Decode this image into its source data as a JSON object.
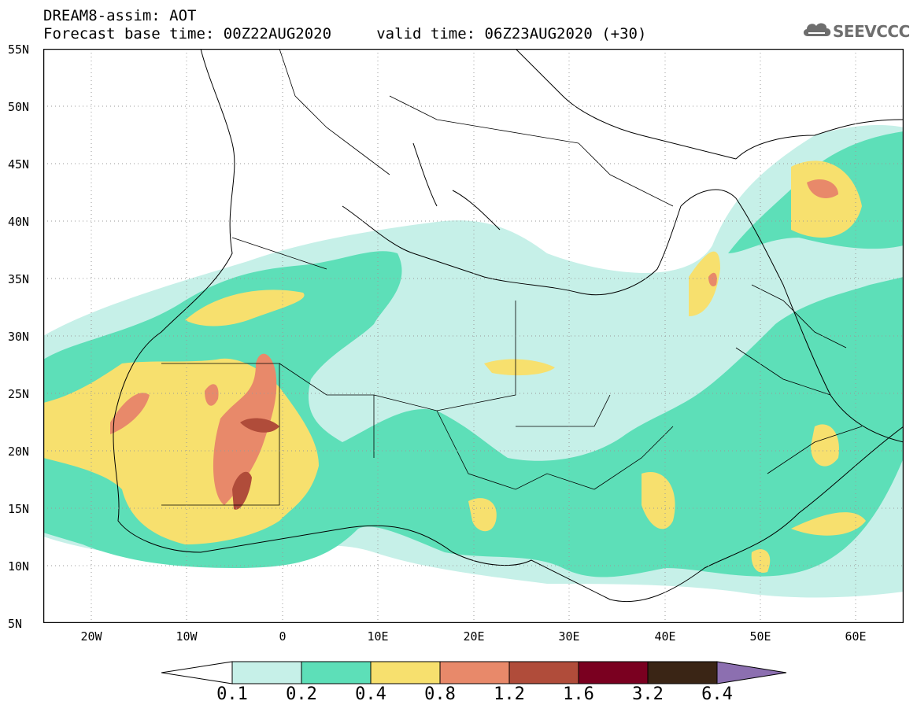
{
  "title": {
    "line1": "DREAM8-assim: AOT",
    "line2": "Forecast base time: 00Z22AUG2020     valid time: 06Z23AUG2020 (+30)"
  },
  "logo": {
    "text": "SEEVCCC",
    "icon": "cloud-icon"
  },
  "map": {
    "projection": "lat-lon",
    "lon_range": [
      -25,
      65
    ],
    "lat_range": [
      5,
      55
    ],
    "grid": "dotted",
    "lat_labels": [
      "55N",
      "50N",
      "45N",
      "40N",
      "35N",
      "30N",
      "25N",
      "20N",
      "15N",
      "10N",
      "5N"
    ],
    "lon_labels": [
      "20W",
      "10W",
      "0",
      "10E",
      "20E",
      "30E",
      "40E",
      "50E",
      "60E"
    ]
  },
  "colorbar": {
    "labels": [
      "0.1",
      "0.2",
      "0.4",
      "0.8",
      "1.2",
      "1.6",
      "3.2",
      "6.4"
    ],
    "colors": {
      "below": "#ffffff",
      "c1": "#c6f0e8",
      "c2": "#5ddfb8",
      "c3": "#f7e06e",
      "c4": "#e8896a",
      "c5": "#b04c3a",
      "c6": "#7a0020",
      "c7": "#3a2515",
      "above": "#8c6fb0"
    }
  }
}
